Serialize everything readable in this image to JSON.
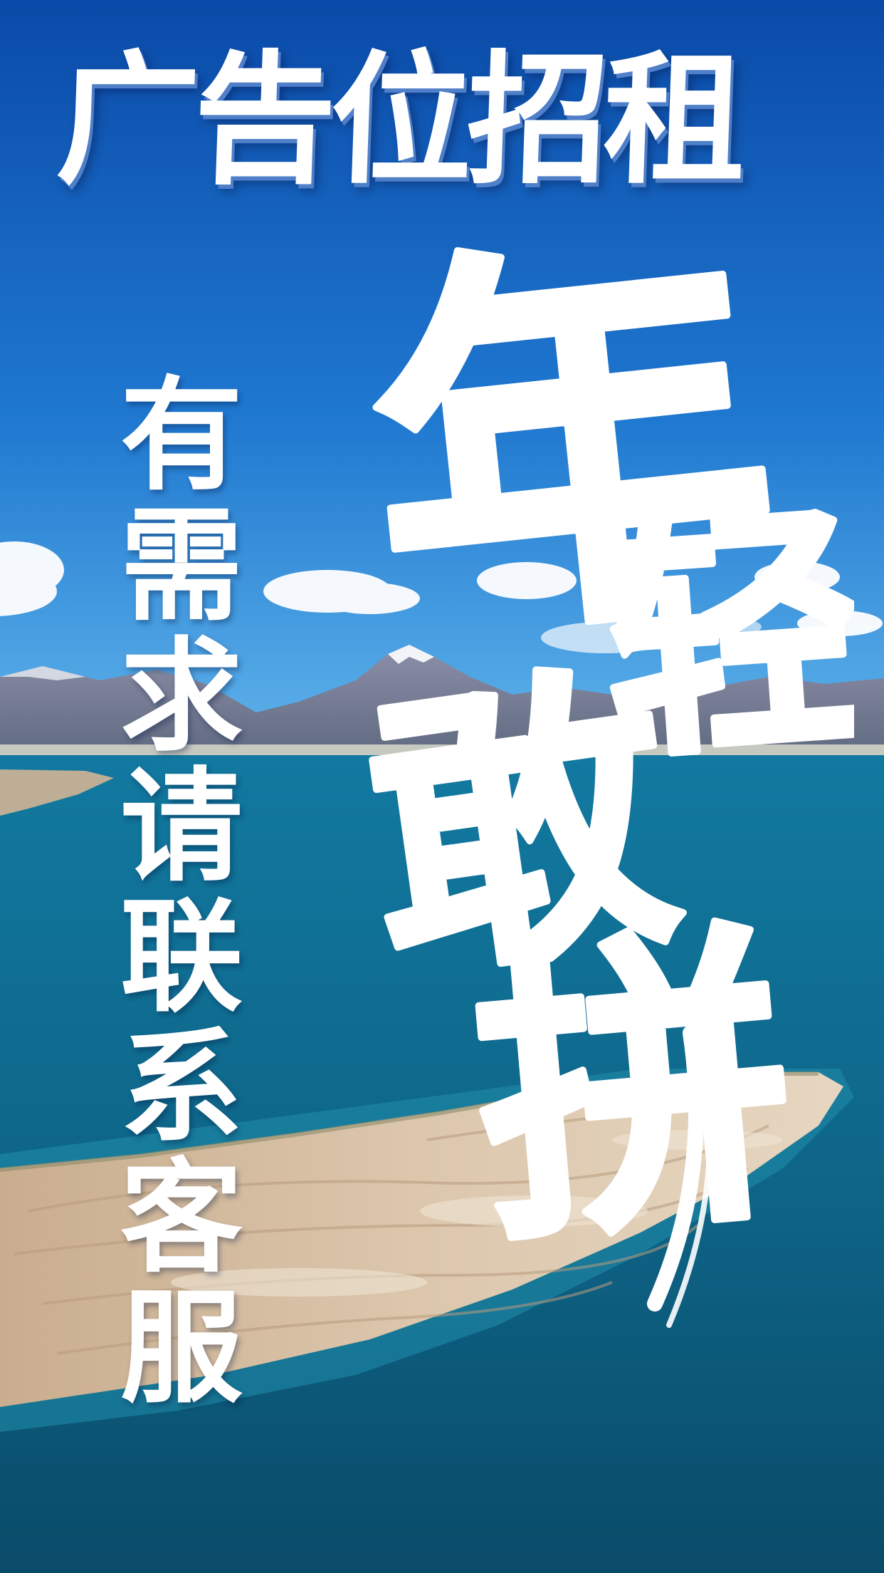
{
  "poster": {
    "headline": "广告位招租",
    "vertical_text": "有需求请联系客服",
    "calligraphy_chars": [
      "年",
      "轻",
      "敢",
      "拼"
    ]
  },
  "colors": {
    "sky_top": "#0a4fae",
    "sky_horizon": "#3d9ee0",
    "lake": "#0f6a8c",
    "lake_deep": "#0b4f6d",
    "sand": "#cdb79c",
    "mountains": "#7a7f98",
    "text": "#ffffff"
  }
}
